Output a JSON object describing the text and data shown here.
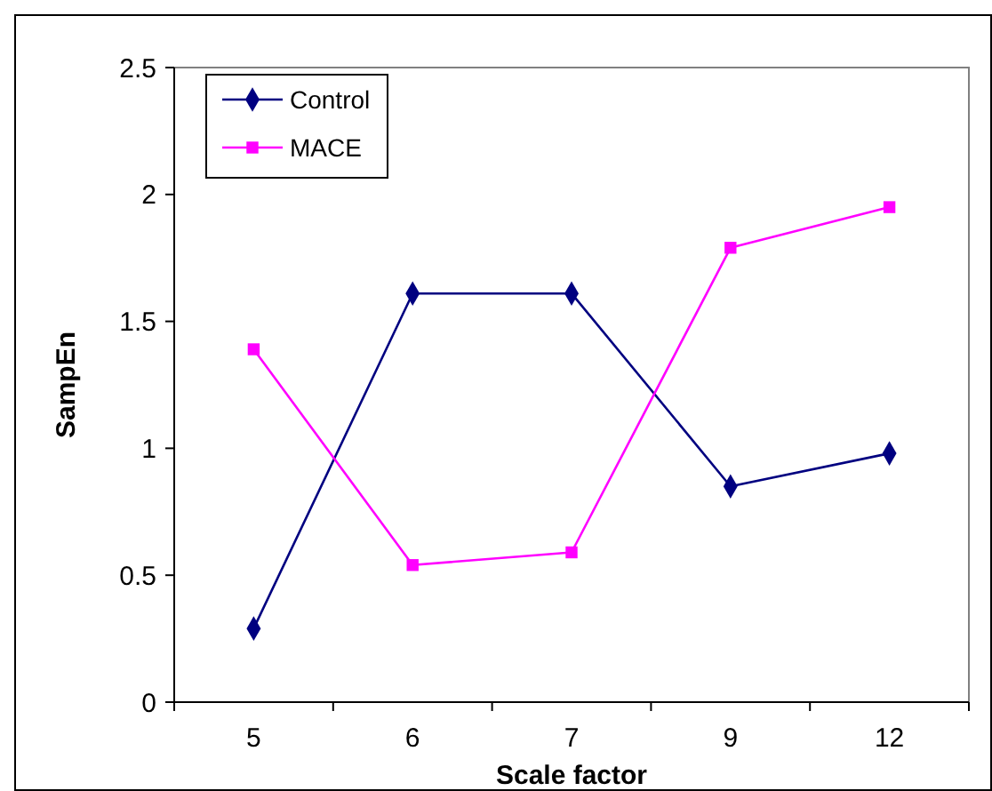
{
  "chart_data": {
    "type": "line",
    "xlabel": "Scale factor",
    "ylabel": "SampEn",
    "categories": [
      "5",
      "6",
      "7",
      "9",
      "12"
    ],
    "series": [
      {
        "name": "Control",
        "color": "#000080",
        "values": [
          0.29,
          1.61,
          1.61,
          0.85,
          0.98
        ],
        "marker": "diamond"
      },
      {
        "name": "MACE",
        "color": "#ff00ff",
        "values": [
          1.39,
          0.54,
          0.59,
          1.79,
          1.95
        ],
        "marker": "square"
      }
    ],
    "ylim": [
      0,
      2.5
    ],
    "yticks": [
      0,
      0.5,
      1,
      1.5,
      2,
      2.5
    ],
    "grid": false,
    "legend": "top left",
    "line_style": "solid"
  }
}
